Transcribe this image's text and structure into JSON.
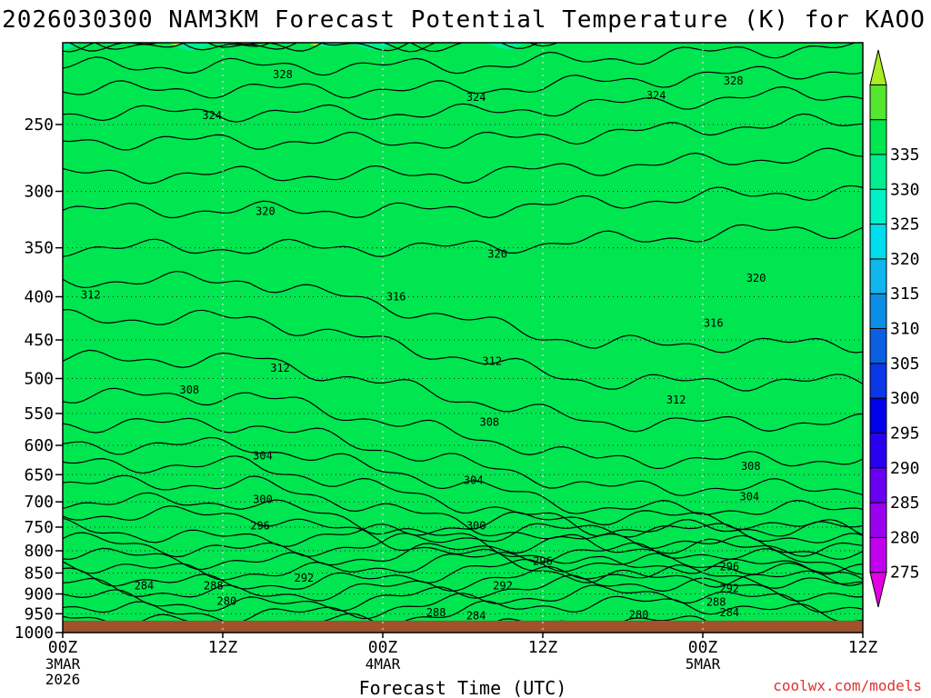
{
  "chart_data": {
    "type": "heatmap",
    "title": "2026030300 NAM3KM Forecast Potential Temperature (K) for KAOO",
    "xlabel": "Forecast Time (UTC)",
    "ylabel": "",
    "y_axis": {
      "ticks": [
        250,
        300,
        350,
        400,
        450,
        500,
        550,
        600,
        650,
        700,
        750,
        800,
        850,
        900,
        950,
        1000
      ],
      "range": [
        200,
        1000
      ],
      "scale": "log-pressure",
      "units": "hPa"
    },
    "x_axis": {
      "range_hours": [
        0,
        60
      ],
      "ticks": [
        {
          "hour": 0,
          "label": "00Z",
          "sub1": "3MAR",
          "sub2": "2026"
        },
        {
          "hour": 12,
          "label": "12Z",
          "sub1": "",
          "sub2": ""
        },
        {
          "hour": 24,
          "label": "00Z",
          "sub1": "4MAR",
          "sub2": ""
        },
        {
          "hour": 36,
          "label": "12Z",
          "sub1": "",
          "sub2": ""
        },
        {
          "hour": 48,
          "label": "00Z",
          "sub1": "5MAR",
          "sub2": ""
        },
        {
          "hour": 60,
          "label": "12Z",
          "sub1": "",
          "sub2": ""
        }
      ]
    },
    "colorbar": {
      "levels": [
        275,
        280,
        285,
        290,
        295,
        300,
        305,
        310,
        315,
        320,
        325,
        330,
        335
      ],
      "colors": [
        "#e600e6",
        "#c000ee",
        "#9a00f0",
        "#6a00f2",
        "#2800ee",
        "#0000ea",
        "#0a38e6",
        "#0a60e0",
        "#0a8ee6",
        "#10b6ee",
        "#00ddee",
        "#00f0c8",
        "#00ee90",
        "#00e650",
        "#55e630",
        "#a8ee20"
      ]
    },
    "ground": {
      "pressure_hpa": 968,
      "color": "#a0522d"
    },
    "theta_profile_at_00z": [
      {
        "p": 1000,
        "theta": 276
      },
      {
        "p": 950,
        "theta": 278
      },
      {
        "p": 900,
        "theta": 282
      },
      {
        "p": 850,
        "theta": 286
      },
      {
        "p": 800,
        "theta": 290
      },
      {
        "p": 750,
        "theta": 294
      },
      {
        "p": 700,
        "theta": 298
      },
      {
        "p": 650,
        "theta": 301
      },
      {
        "p": 600,
        "theta": 304
      },
      {
        "p": 550,
        "theta": 307
      },
      {
        "p": 500,
        "theta": 309
      },
      {
        "p": 450,
        "theta": 311
      },
      {
        "p": 400,
        "theta": 313
      },
      {
        "p": 350,
        "theta": 316
      },
      {
        "p": 300,
        "theta": 319
      },
      {
        "p": 250,
        "theta": 323
      },
      {
        "p": 200,
        "theta": 330
      }
    ],
    "contour_labels": [
      {
        "text": "328",
        "hour": 16.5,
        "p": 218
      },
      {
        "text": "328",
        "hour": 50.3,
        "p": 222
      },
      {
        "text": "324",
        "hour": 11.2,
        "p": 244
      },
      {
        "text": "324",
        "hour": 31.0,
        "p": 232
      },
      {
        "text": "324",
        "hour": 44.5,
        "p": 231
      },
      {
        "text": "320",
        "hour": 15.2,
        "p": 317
      },
      {
        "text": "320",
        "hour": 32.6,
        "p": 356
      },
      {
        "text": "320",
        "hour": 52.0,
        "p": 380
      },
      {
        "text": "316",
        "hour": 25.0,
        "p": 400
      },
      {
        "text": "316",
        "hour": 48.8,
        "p": 430
      },
      {
        "text": "312",
        "hour": 2.1,
        "p": 398
      },
      {
        "text": "312",
        "hour": 16.3,
        "p": 486
      },
      {
        "text": "312",
        "hour": 32.2,
        "p": 477
      },
      {
        "text": "312",
        "hour": 46.0,
        "p": 530
      },
      {
        "text": "308",
        "hour": 9.5,
        "p": 516
      },
      {
        "text": "308",
        "hour": 32.0,
        "p": 563
      },
      {
        "text": "308",
        "hour": 51.6,
        "p": 635
      },
      {
        "text": "304",
        "hour": 15.0,
        "p": 617
      },
      {
        "text": "304",
        "hour": 30.8,
        "p": 660
      },
      {
        "text": "304",
        "hour": 51.5,
        "p": 690
      },
      {
        "text": "300",
        "hour": 15.0,
        "p": 695
      },
      {
        "text": "300",
        "hour": 31.0,
        "p": 747
      },
      {
        "text": "296",
        "hour": 14.8,
        "p": 747
      },
      {
        "text": "296",
        "hour": 36.0,
        "p": 823
      },
      {
        "text": "296",
        "hour": 50.0,
        "p": 835
      },
      {
        "text": "292",
        "hour": 18.1,
        "p": 862
      },
      {
        "text": "292",
        "hour": 33.0,
        "p": 880
      },
      {
        "text": "292",
        "hour": 50.0,
        "p": 887
      },
      {
        "text": "288",
        "hour": 11.3,
        "p": 880
      },
      {
        "text": "288",
        "hour": 28.0,
        "p": 947
      },
      {
        "text": "288",
        "hour": 49.0,
        "p": 920
      },
      {
        "text": "284",
        "hour": 6.1,
        "p": 880
      },
      {
        "text": "284",
        "hour": 31.0,
        "p": 955
      },
      {
        "text": "284",
        "hour": 50.0,
        "p": 947
      },
      {
        "text": "280",
        "hour": 12.3,
        "p": 918
      },
      {
        "text": "280",
        "hour": 43.2,
        "p": 953
      }
    ]
  },
  "credit": "coolwx.com/models"
}
